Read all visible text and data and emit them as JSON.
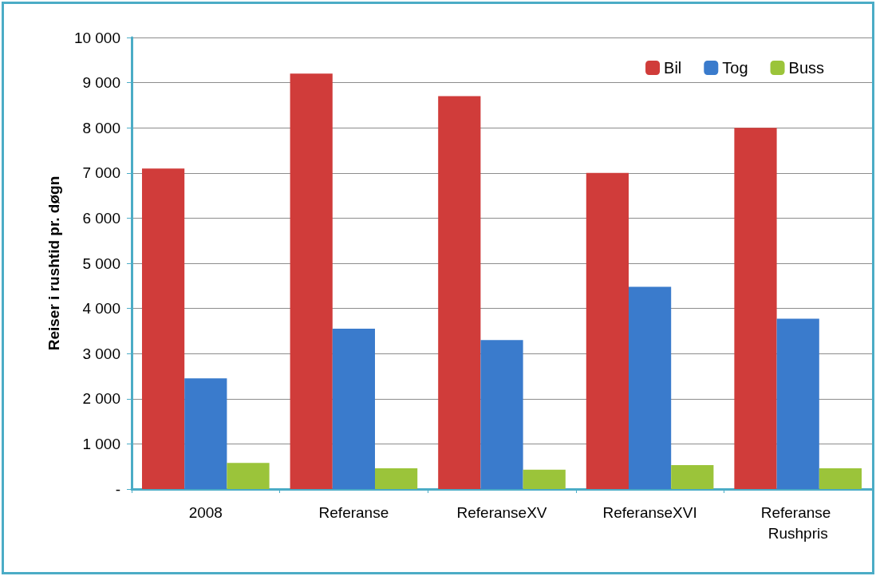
{
  "chart_data": {
    "type": "bar",
    "ylabel": "Reiser i rushtid pr. døgn",
    "categories": [
      "2008",
      "Referanse",
      "ReferanseXV",
      "ReferanseXVI",
      "Referanse Rushpris"
    ],
    "series": [
      {
        "name": "Bil",
        "color": "#d03c3a",
        "values": [
          7100,
          9200,
          8700,
          7000,
          8000
        ]
      },
      {
        "name": "Tog",
        "color": "#3a7bcc",
        "values": [
          2450,
          3550,
          3300,
          4480,
          3770
        ]
      },
      {
        "name": "Buss",
        "color": "#9bc43a",
        "values": [
          580,
          460,
          430,
          530,
          460
        ]
      }
    ],
    "ylim": [
      0,
      10000
    ],
    "yticks": [
      {
        "value": 0,
        "label": "-"
      },
      {
        "value": 1000,
        "label": "1 000"
      },
      {
        "value": 2000,
        "label": "2 000"
      },
      {
        "value": 3000,
        "label": "3 000"
      },
      {
        "value": 4000,
        "label": "4 000"
      },
      {
        "value": 5000,
        "label": "5 000"
      },
      {
        "value": 6000,
        "label": "6 000"
      },
      {
        "value": 7000,
        "label": "7 000"
      },
      {
        "value": 8000,
        "label": "8 000"
      },
      {
        "value": 9000,
        "label": "9 000"
      },
      {
        "value": 10000,
        "label": "10 000"
      }
    ],
    "grid": "y",
    "legend": "top right"
  }
}
